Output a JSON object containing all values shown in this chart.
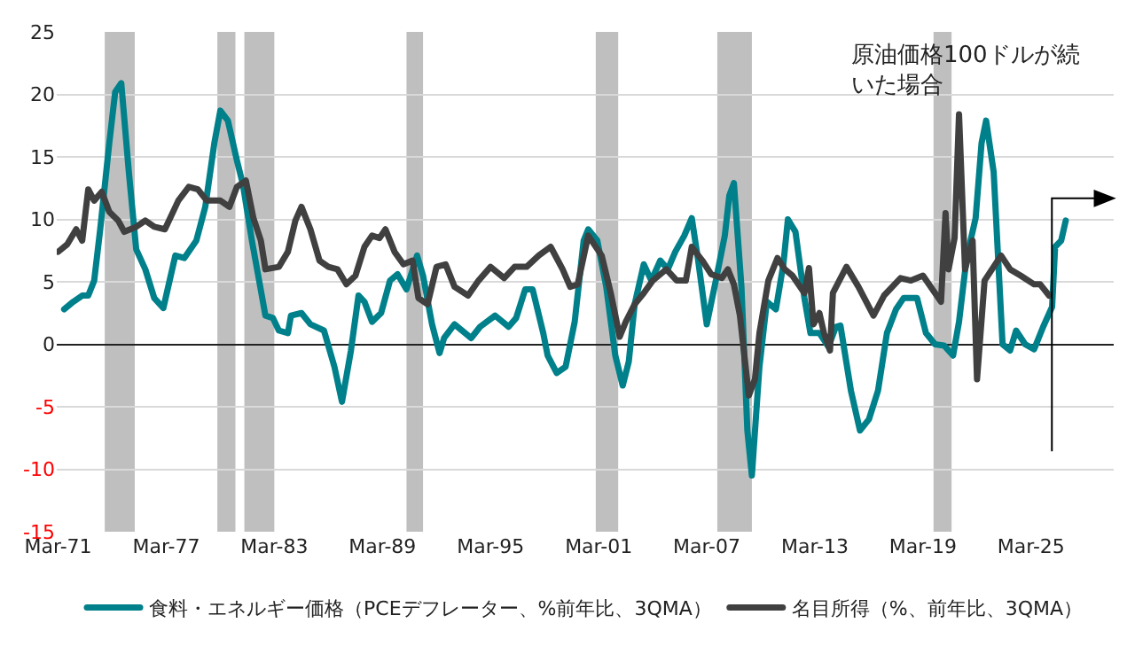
{
  "chart_data": {
    "type": "line",
    "xlim": [
      "1971-02",
      "2029-10"
    ],
    "xticks": [
      {
        "value": "1971-03",
        "label": "Mar-71"
      },
      {
        "value": "1977-03",
        "label": "Mar-77"
      },
      {
        "value": "1983-03",
        "label": "Mar-83"
      },
      {
        "value": "1989-03",
        "label": "Mar-89"
      },
      {
        "value": "1995-03",
        "label": "Mar-95"
      },
      {
        "value": "2001-03",
        "label": "Mar-01"
      },
      {
        "value": "2007-03",
        "label": "Mar-07"
      },
      {
        "value": "2013-03",
        "label": "Mar-13"
      },
      {
        "value": "2019-03",
        "label": "Mar-19"
      },
      {
        "value": "2025-03",
        "label": "Mar-25"
      }
    ],
    "ylim": [
      -15,
      25
    ],
    "yticks": [
      -15,
      -10,
      -5,
      0,
      5,
      10,
      15,
      20,
      25
    ],
    "grid": "y",
    "legend": "bottom",
    "line_style": "solid",
    "annotations": [
      "原油価格100ドルが続いた場合"
    ],
    "bands": [
      {
        "axis": "x",
        "from": "1973-10",
        "to": "1975-06",
        "color": "#bfbfbf"
      },
      {
        "axis": "x",
        "from": "1980-01",
        "to": "1981-01",
        "color": "#bfbfbf"
      },
      {
        "axis": "x",
        "from": "1981-07",
        "to": "1983-03",
        "color": "#bfbfbf"
      },
      {
        "axis": "x",
        "from": "1990-07",
        "to": "1991-06",
        "color": "#bfbfbf"
      },
      {
        "axis": "x",
        "from": "2001-01",
        "to": "2002-04",
        "color": "#bfbfbf"
      },
      {
        "axis": "x",
        "from": "2007-10",
        "to": "2009-09",
        "color": "#bfbfbf"
      },
      {
        "axis": "x",
        "from": "2019-10",
        "to": "2020-10",
        "color": "#bfbfbf"
      }
    ],
    "series": [
      {
        "name": "食料・エネルギー価格（PCEデフレーター、%前年比、3QMA）",
        "color": "#00808a",
        "x": [
          "1971-07",
          "1972-01",
          "1972-07",
          "1972-11",
          "1973-03",
          "1973-07",
          "1974-01",
          "1974-05",
          "1974-09",
          "1975-02",
          "1975-07",
          "1976-01",
          "1976-07",
          "1977-01",
          "1977-09",
          "1978-03",
          "1978-11",
          "1979-05",
          "1979-11",
          "1980-03",
          "1980-08",
          "1981-02",
          "1981-06",
          "1981-12",
          "1982-05",
          "1982-09",
          "1983-02",
          "1983-06",
          "1983-12",
          "1984-02",
          "1984-09",
          "1985-03",
          "1985-12",
          "1986-07",
          "1986-12",
          "1987-06",
          "1987-11",
          "1988-03",
          "1988-08",
          "1989-02",
          "1989-08",
          "1990-01",
          "1990-07",
          "1991-02",
          "1991-06",
          "1991-12",
          "1992-05",
          "1992-08",
          "1993-03",
          "1994-02",
          "1994-08",
          "1995-06",
          "1996-03",
          "1996-08",
          "1997-02",
          "1997-07",
          "1998-02",
          "1998-05",
          "1998-11",
          "1999-05",
          "1999-11",
          "2000-05",
          "2000-08",
          "2001-02",
          "2001-08",
          "2002-02",
          "2002-07",
          "2002-11",
          "2003-03",
          "2003-09",
          "2004-02",
          "2004-08",
          "2005-01",
          "2005-06",
          "2005-12",
          "2006-05",
          "2006-09",
          "2007-03",
          "2007-09",
          "2008-03",
          "2008-06",
          "2008-09",
          "2009-02",
          "2009-06",
          "2009-09",
          "2010-02",
          "2010-07",
          "2011-01",
          "2011-06",
          "2011-09",
          "2012-02",
          "2012-08",
          "2012-12",
          "2013-06",
          "2013-12",
          "2014-05",
          "2014-08",
          "2015-03",
          "2015-09",
          "2016-03",
          "2016-09",
          "2017-03",
          "2017-09",
          "2018-02",
          "2018-11",
          "2019-05",
          "2019-11",
          "2020-05",
          "2020-11",
          "2021-03",
          "2021-08",
          "2022-02",
          "2022-06",
          "2022-09",
          "2023-02",
          "2023-08",
          "2024-01",
          "2024-05",
          "2024-11",
          "2025-05",
          "2025-11",
          "2026-05",
          "2026-07",
          "2026-11",
          "2027-02"
        ],
        "values": [
          2.8,
          3.4,
          3.9,
          3.9,
          5.1,
          9.2,
          16.1,
          20.2,
          20.9,
          13.8,
          7.6,
          6.0,
          3.7,
          2.9,
          7.1,
          6.9,
          8.3,
          11.0,
          16.1,
          18.7,
          17.9,
          14.7,
          12.8,
          8.3,
          5.0,
          2.3,
          2.1,
          1.1,
          0.9,
          2.3,
          2.5,
          1.6,
          1.1,
          -1.8,
          -4.6,
          -0.5,
          3.9,
          3.4,
          1.8,
          2.5,
          5.1,
          5.6,
          4.4,
          7.1,
          5.5,
          1.6,
          -0.7,
          0.5,
          1.6,
          0.5,
          1.4,
          2.3,
          1.4,
          2.1,
          4.4,
          4.4,
          0.9,
          -0.9,
          -2.3,
          -1.8,
          1.8,
          8.3,
          9.2,
          8.3,
          4.6,
          -0.9,
          -3.3,
          -1.4,
          3.2,
          6.4,
          5.1,
          6.7,
          6.0,
          7.4,
          8.7,
          10.1,
          6.9,
          1.6,
          5.1,
          8.7,
          11.9,
          12.9,
          4.6,
          -6.9,
          -10.5,
          -1.8,
          3.4,
          2.8,
          6.4,
          10.0,
          9.0,
          3.7,
          0.9,
          0.9,
          -0.2,
          1.4,
          1.5,
          -3.7,
          -6.9,
          -6.0,
          -3.7,
          0.9,
          2.8,
          3.7,
          3.7,
          0.9,
          0.0,
          -0.1,
          -0.9,
          1.8,
          6.9,
          10.1,
          16.1,
          17.9,
          13.8,
          0.0,
          -0.5,
          1.1,
          0.0,
          -0.4,
          1.4,
          3.0,
          7.8,
          8.3,
          9.9
        ]
      },
      {
        "name": "名目所得（%、前年比、3QMA）",
        "color": "#404040",
        "x": [
          "1971-03",
          "1971-09",
          "1972-03",
          "1972-07",
          "1972-11",
          "1973-03",
          "1973-08",
          "1974-01",
          "1974-07",
          "1974-11",
          "1975-07",
          "1976-01",
          "1976-07",
          "1977-02",
          "1977-11",
          "1978-06",
          "1978-12",
          "1979-06",
          "1980-03",
          "1980-09",
          "1981-02",
          "1981-08",
          "1982-01",
          "1982-06",
          "1982-09",
          "1983-06",
          "1983-12",
          "1984-05",
          "1984-09",
          "1985-03",
          "1985-09",
          "1986-03",
          "1986-09",
          "1987-03",
          "1987-09",
          "1988-03",
          "1988-08",
          "1989-01",
          "1989-05",
          "1989-11",
          "1990-05",
          "1990-11",
          "1991-03",
          "1991-09",
          "1992-03",
          "1992-09",
          "1993-03",
          "1993-12",
          "1994-07",
          "1995-03",
          "1995-12",
          "1996-07",
          "1997-03",
          "1997-11",
          "1998-07",
          "1999-03",
          "1999-08",
          "2000-01",
          "2000-08",
          "2001-05",
          "2001-11",
          "2002-05",
          "2002-09",
          "2003-03",
          "2003-09",
          "2004-03",
          "2004-12",
          "2005-07",
          "2006-01",
          "2006-05",
          "2006-12",
          "2007-06",
          "2008-01",
          "2008-05",
          "2008-09",
          "2009-01",
          "2009-07",
          "2009-11",
          "2010-02",
          "2010-08",
          "2011-02",
          "2011-07",
          "2011-12",
          "2012-08",
          "2012-11",
          "2013-02",
          "2013-06",
          "2013-09",
          "2014-01",
          "2014-03",
          "2014-12",
          "2015-08",
          "2016-06",
          "2017-01",
          "2017-12",
          "2018-07",
          "2019-03",
          "2019-11",
          "2020-03",
          "2020-06",
          "2020-08",
          "2020-12",
          "2021-03",
          "2021-07",
          "2021-12",
          "2022-03",
          "2022-08",
          "2023-07",
          "2024-01",
          "2024-08",
          "2025-05",
          "2025-09",
          "2026-03"
        ],
        "values": [
          7.4,
          8.0,
          9.2,
          8.3,
          12.4,
          11.5,
          12.2,
          10.6,
          9.9,
          9.0,
          9.4,
          9.9,
          9.4,
          9.2,
          11.5,
          12.6,
          12.4,
          11.5,
          11.5,
          11.0,
          12.6,
          13.1,
          10.1,
          8.3,
          6.0,
          6.2,
          7.4,
          9.9,
          11.0,
          9.2,
          6.7,
          6.2,
          6.0,
          4.8,
          5.5,
          7.8,
          8.7,
          8.5,
          9.2,
          7.4,
          6.4,
          6.7,
          3.7,
          3.2,
          6.2,
          6.4,
          4.6,
          3.9,
          5.1,
          6.2,
          5.3,
          6.2,
          6.2,
          7.1,
          7.8,
          6.0,
          4.6,
          4.8,
          8.7,
          7.1,
          4.1,
          0.6,
          1.8,
          3.2,
          4.1,
          5.1,
          6.0,
          5.1,
          5.1,
          7.8,
          6.7,
          5.6,
          5.3,
          6.0,
          4.8,
          2.3,
          -4.1,
          -2.8,
          0.9,
          5.1,
          6.9,
          6.0,
          5.5,
          4.1,
          6.1,
          1.6,
          2.5,
          0.9,
          -0.5,
          4.1,
          6.2,
          4.6,
          2.3,
          3.9,
          5.3,
          5.1,
          5.5,
          4.1,
          3.4,
          10.5,
          6.0,
          8.5,
          18.4,
          6.0,
          8.3,
          -2.8,
          5.1,
          7.1,
          6.0,
          5.5,
          4.8,
          4.8,
          3.9
        ]
      }
    ]
  }
}
